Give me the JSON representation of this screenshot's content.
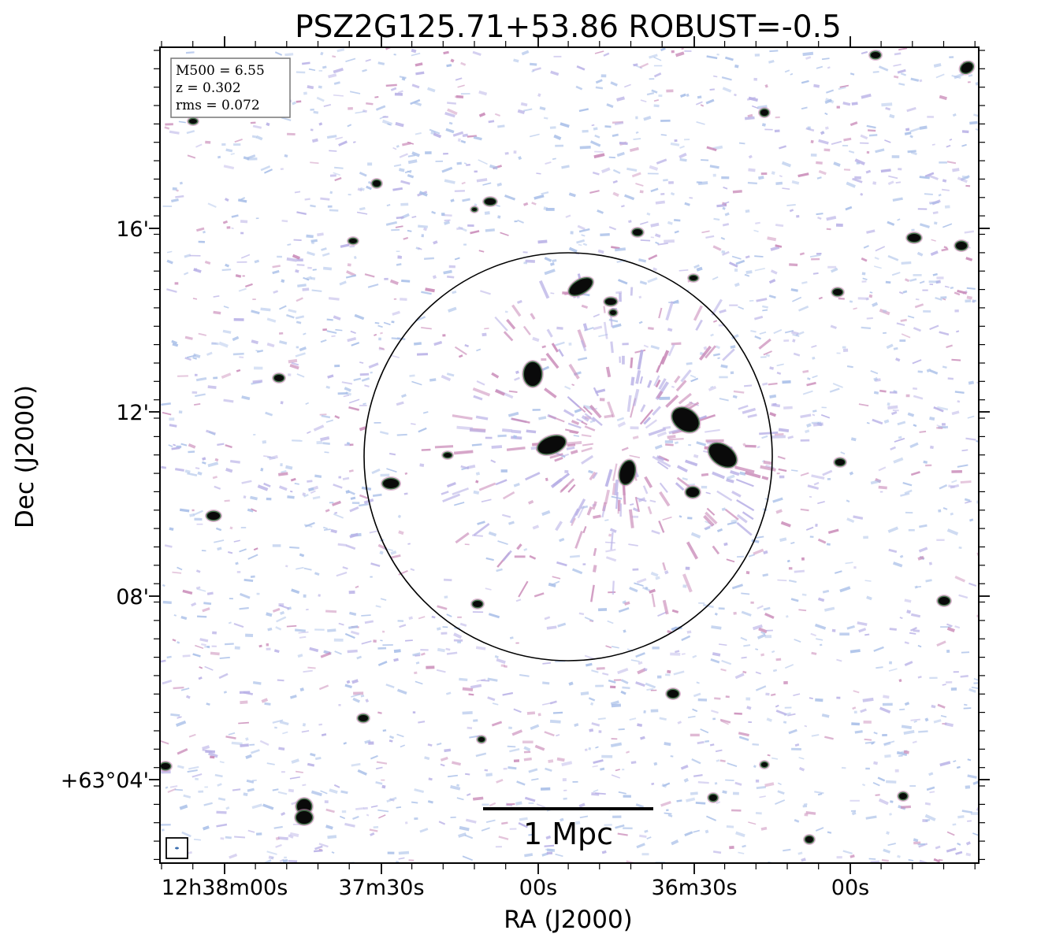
{
  "chart_data": {
    "type": "heatmap",
    "title": "PSZ2G125.71+53.86 ROBUST=-0.5",
    "xlabel": "RA (J2000)",
    "ylabel": "Dec (J2000)",
    "x_ticks": [
      "12h38m00s",
      "37m30s",
      "00s",
      "36m30s",
      "00s"
    ],
    "y_ticks": [
      "+63°04'",
      "08'",
      "12'",
      "16'"
    ],
    "info_box": [
      "M500 = 6.55",
      "z = 0.302",
      "rms = 0.072"
    ],
    "scale_bar_label": "1 Mpc",
    "colors": {
      "noise_blue": "#a9bfe8",
      "noise_lavender": "#b8b0e6",
      "noise_pink": "#c98ab8",
      "source_core": "#0a0a0a",
      "source_halo": "#2f6b38",
      "frame": "#000000"
    }
  }
}
